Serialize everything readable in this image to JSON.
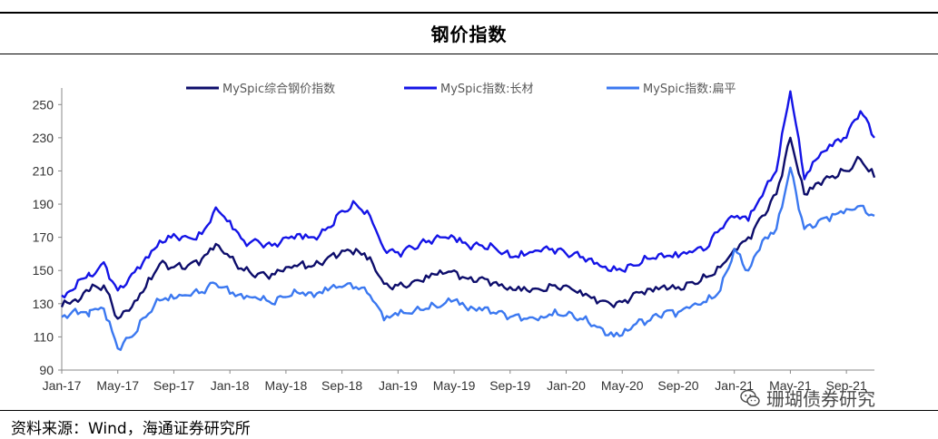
{
  "header": {
    "title": "钢价指数"
  },
  "footer": {
    "source": "资料来源：Wind，海通证券研究所"
  },
  "watermark": {
    "text": "珊瑚债券研究",
    "icon": "wechat-icon"
  },
  "chart_data": {
    "type": "line",
    "title": "钢价指数",
    "xlabel": "",
    "ylabel": "",
    "ylim": [
      90,
      260
    ],
    "yticks": [
      90,
      110,
      130,
      150,
      170,
      190,
      210,
      230,
      250
    ],
    "xticks": [
      "Jan-17",
      "May-17",
      "Sep-17",
      "Jan-18",
      "May-18",
      "Sep-18",
      "Jan-19",
      "May-19",
      "Sep-19",
      "Jan-20",
      "May-20",
      "Sep-20",
      "Jan-21",
      "May-21",
      "Sep-21"
    ],
    "xrange": [
      "Jan-17",
      "Nov-21"
    ],
    "legend_position": "top",
    "grid": false,
    "series": [
      {
        "name": "MySpic综合钢价指数",
        "color": "#0d0d6b",
        "points": [
          [
            "Jan-17",
            128
          ],
          [
            "Mar-17",
            138
          ],
          [
            "Apr-17",
            141
          ],
          [
            "May-17",
            121
          ],
          [
            "Jun-17",
            128
          ],
          [
            "Jul-17",
            140
          ],
          [
            "Aug-17",
            154
          ],
          [
            "Sep-17",
            152
          ],
          [
            "Oct-17",
            153
          ],
          [
            "Nov-17",
            157
          ],
          [
            "Dec-17",
            166
          ],
          [
            "Jan-18",
            158
          ],
          [
            "Feb-18",
            150
          ],
          [
            "Mar-18",
            148
          ],
          [
            "Apr-18",
            148
          ],
          [
            "May-18",
            152
          ],
          [
            "Jun-18",
            154
          ],
          [
            "Jul-18",
            153
          ],
          [
            "Aug-18",
            158
          ],
          [
            "Sep-18",
            162
          ],
          [
            "Oct-18",
            163
          ],
          [
            "Nov-18",
            158
          ],
          [
            "Dec-18",
            142
          ],
          [
            "Jan-19",
            141
          ],
          [
            "Feb-19",
            143
          ],
          [
            "Mar-19",
            147
          ],
          [
            "Apr-19",
            150
          ],
          [
            "May-19",
            150
          ],
          [
            "Jun-19",
            145
          ],
          [
            "Jul-19",
            146
          ],
          [
            "Aug-19",
            143
          ],
          [
            "Sep-19",
            140
          ],
          [
            "Oct-19",
            140
          ],
          [
            "Nov-19",
            139
          ],
          [
            "Dec-19",
            141
          ],
          [
            "Jan-20",
            141
          ],
          [
            "Feb-20",
            138
          ],
          [
            "Mar-20",
            134
          ],
          [
            "Apr-20",
            131
          ],
          [
            "May-20",
            131
          ],
          [
            "Jun-20",
            137
          ],
          [
            "Jul-20",
            139
          ],
          [
            "Aug-20",
            141
          ],
          [
            "Sep-20",
            140
          ],
          [
            "Oct-20",
            143
          ],
          [
            "Nov-20",
            146
          ],
          [
            "Dec-20",
            152
          ],
          [
            "Jan-21",
            163
          ],
          [
            "Feb-21",
            170
          ],
          [
            "Mar-21",
            183
          ],
          [
            "Apr-21",
            196
          ],
          [
            "May-21",
            230
          ],
          [
            "Jun-21",
            196
          ],
          [
            "Jul-21",
            203
          ],
          [
            "Aug-21",
            207
          ],
          [
            "Sep-21",
            210
          ],
          [
            "Oct-21",
            217
          ],
          [
            "Nov-21",
            206
          ]
        ]
      },
      {
        "name": "MySpic指数:长材",
        "color": "#1414e6",
        "points": [
          [
            "Jan-17",
            135
          ],
          [
            "Mar-17",
            147
          ],
          [
            "Apr-17",
            155
          ],
          [
            "May-17",
            138
          ],
          [
            "Jun-17",
            148
          ],
          [
            "Jul-17",
            158
          ],
          [
            "Aug-17",
            168
          ],
          [
            "Sep-17",
            172
          ],
          [
            "Oct-17",
            170
          ],
          [
            "Nov-17",
            172
          ],
          [
            "Dec-17",
            188
          ],
          [
            "Jan-18",
            180
          ],
          [
            "Feb-18",
            168
          ],
          [
            "Mar-18",
            168
          ],
          [
            "Apr-18",
            165
          ],
          [
            "May-18",
            170
          ],
          [
            "Jun-18",
            172
          ],
          [
            "Jul-18",
            170
          ],
          [
            "Aug-18",
            176
          ],
          [
            "Sep-18",
            186
          ],
          [
            "Oct-18",
            190
          ],
          [
            "Nov-18",
            183
          ],
          [
            "Dec-18",
            163
          ],
          [
            "Jan-19",
            161
          ],
          [
            "Feb-19",
            164
          ],
          [
            "Mar-19",
            167
          ],
          [
            "Apr-19",
            170
          ],
          [
            "May-19",
            170
          ],
          [
            "Jun-19",
            165
          ],
          [
            "Jul-19",
            165
          ],
          [
            "Aug-19",
            163
          ],
          [
            "Sep-19",
            158
          ],
          [
            "Oct-19",
            159
          ],
          [
            "Nov-19",
            162
          ],
          [
            "Dec-19",
            163
          ],
          [
            "Jan-20",
            160
          ],
          [
            "Feb-20",
            158
          ],
          [
            "Mar-20",
            154
          ],
          [
            "Apr-20",
            150
          ],
          [
            "May-20",
            150
          ],
          [
            "Jun-20",
            153
          ],
          [
            "Jul-20",
            157
          ],
          [
            "Aug-20",
            158
          ],
          [
            "Sep-20",
            158
          ],
          [
            "Oct-20",
            161
          ],
          [
            "Nov-20",
            163
          ],
          [
            "Dec-20",
            175
          ],
          [
            "Jan-21",
            182
          ],
          [
            "Feb-21",
            180
          ],
          [
            "Mar-21",
            195
          ],
          [
            "Apr-21",
            210
          ],
          [
            "May-21",
            258
          ],
          [
            "Jun-21",
            205
          ],
          [
            "Jul-21",
            218
          ],
          [
            "Aug-21",
            225
          ],
          [
            "Sep-21",
            230
          ],
          [
            "Oct-21",
            246
          ],
          [
            "Nov-21",
            230
          ]
        ]
      },
      {
        "name": "MySpic指数:扁平",
        "color": "#3b78f0",
        "points": [
          [
            "Jan-17",
            122
          ],
          [
            "Mar-17",
            126
          ],
          [
            "Apr-17",
            127
          ],
          [
            "May-17",
            103
          ],
          [
            "Jun-17",
            110
          ],
          [
            "Jul-17",
            122
          ],
          [
            "Aug-17",
            132
          ],
          [
            "Sep-17",
            133
          ],
          [
            "Oct-17",
            135
          ],
          [
            "Nov-17",
            137
          ],
          [
            "Dec-17",
            142
          ],
          [
            "Jan-18",
            136
          ],
          [
            "Feb-18",
            133
          ],
          [
            "Mar-18",
            133
          ],
          [
            "Apr-18",
            130
          ],
          [
            "May-18",
            134
          ],
          [
            "Jun-18",
            136
          ],
          [
            "Jul-18",
            134
          ],
          [
            "Aug-18",
            138
          ],
          [
            "Sep-18",
            140
          ],
          [
            "Oct-18",
            140
          ],
          [
            "Nov-18",
            135
          ],
          [
            "Dec-18",
            120
          ],
          [
            "Jan-19",
            123
          ],
          [
            "Feb-19",
            124
          ],
          [
            "Mar-19",
            127
          ],
          [
            "Apr-19",
            128
          ],
          [
            "May-19",
            132
          ],
          [
            "Jun-19",
            126
          ],
          [
            "Jul-19",
            126
          ],
          [
            "Aug-19",
            124
          ],
          [
            "Sep-19",
            122
          ],
          [
            "Oct-19",
            121
          ],
          [
            "Nov-19",
            120
          ],
          [
            "Dec-19",
            123
          ],
          [
            "Jan-20",
            123
          ],
          [
            "Feb-20",
            121
          ],
          [
            "Mar-20",
            117
          ],
          [
            "Apr-20",
            111
          ],
          [
            "May-20",
            111
          ],
          [
            "Jun-20",
            118
          ],
          [
            "Jul-20",
            120
          ],
          [
            "Aug-20",
            125
          ],
          [
            "Sep-20",
            125
          ],
          [
            "Oct-20",
            129
          ],
          [
            "Nov-20",
            131
          ],
          [
            "Dec-20",
            138
          ],
          [
            "Jan-21",
            163
          ],
          [
            "Feb-21",
            150
          ],
          [
            "Mar-21",
            168
          ],
          [
            "Apr-21",
            175
          ],
          [
            "May-21",
            212
          ],
          [
            "Jun-21",
            175
          ],
          [
            "Jul-21",
            180
          ],
          [
            "Aug-21",
            184
          ],
          [
            "Sep-21",
            187
          ],
          [
            "Oct-21",
            189
          ],
          [
            "Nov-21",
            183
          ]
        ]
      }
    ]
  }
}
